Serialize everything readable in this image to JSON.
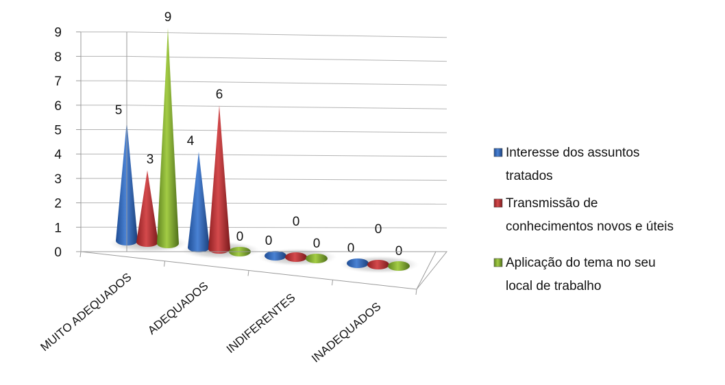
{
  "chart_data": {
    "type": "bar",
    "subtype": "3d-cone",
    "title": "",
    "xlabel": "",
    "ylabel": "",
    "ylim": [
      0,
      9
    ],
    "yticks": [
      0,
      1,
      2,
      3,
      4,
      5,
      6,
      7,
      8,
      9
    ],
    "grid": true,
    "legend_position": "right",
    "categories": [
      "MUITO ADEQUADOS",
      "ADEQUADOS",
      "INDIFERENTES",
      "INADEQUADOS"
    ],
    "series": [
      {
        "name": "Interesse dos assuntos tratados",
        "legend_lines": [
          "Interesse dos assuntos",
          "tratados"
        ],
        "color": "#3a6ebf",
        "values": [
          5,
          4,
          0,
          0
        ]
      },
      {
        "name": "Transmissão de conhecimentos novos e úteis",
        "legend_lines": [
          "Transmissão de",
          "conhecimentos novos e úteis"
        ],
        "color": "#c0393b",
        "values": [
          3,
          6,
          0,
          0
        ]
      },
      {
        "name": "Aplicação do tema no seu local de trabalho",
        "legend_lines": [
          "Aplicação do tema no seu",
          "local de trabalho"
        ],
        "color": "#8fb735",
        "values": [
          9,
          0,
          0,
          0
        ]
      }
    ]
  }
}
